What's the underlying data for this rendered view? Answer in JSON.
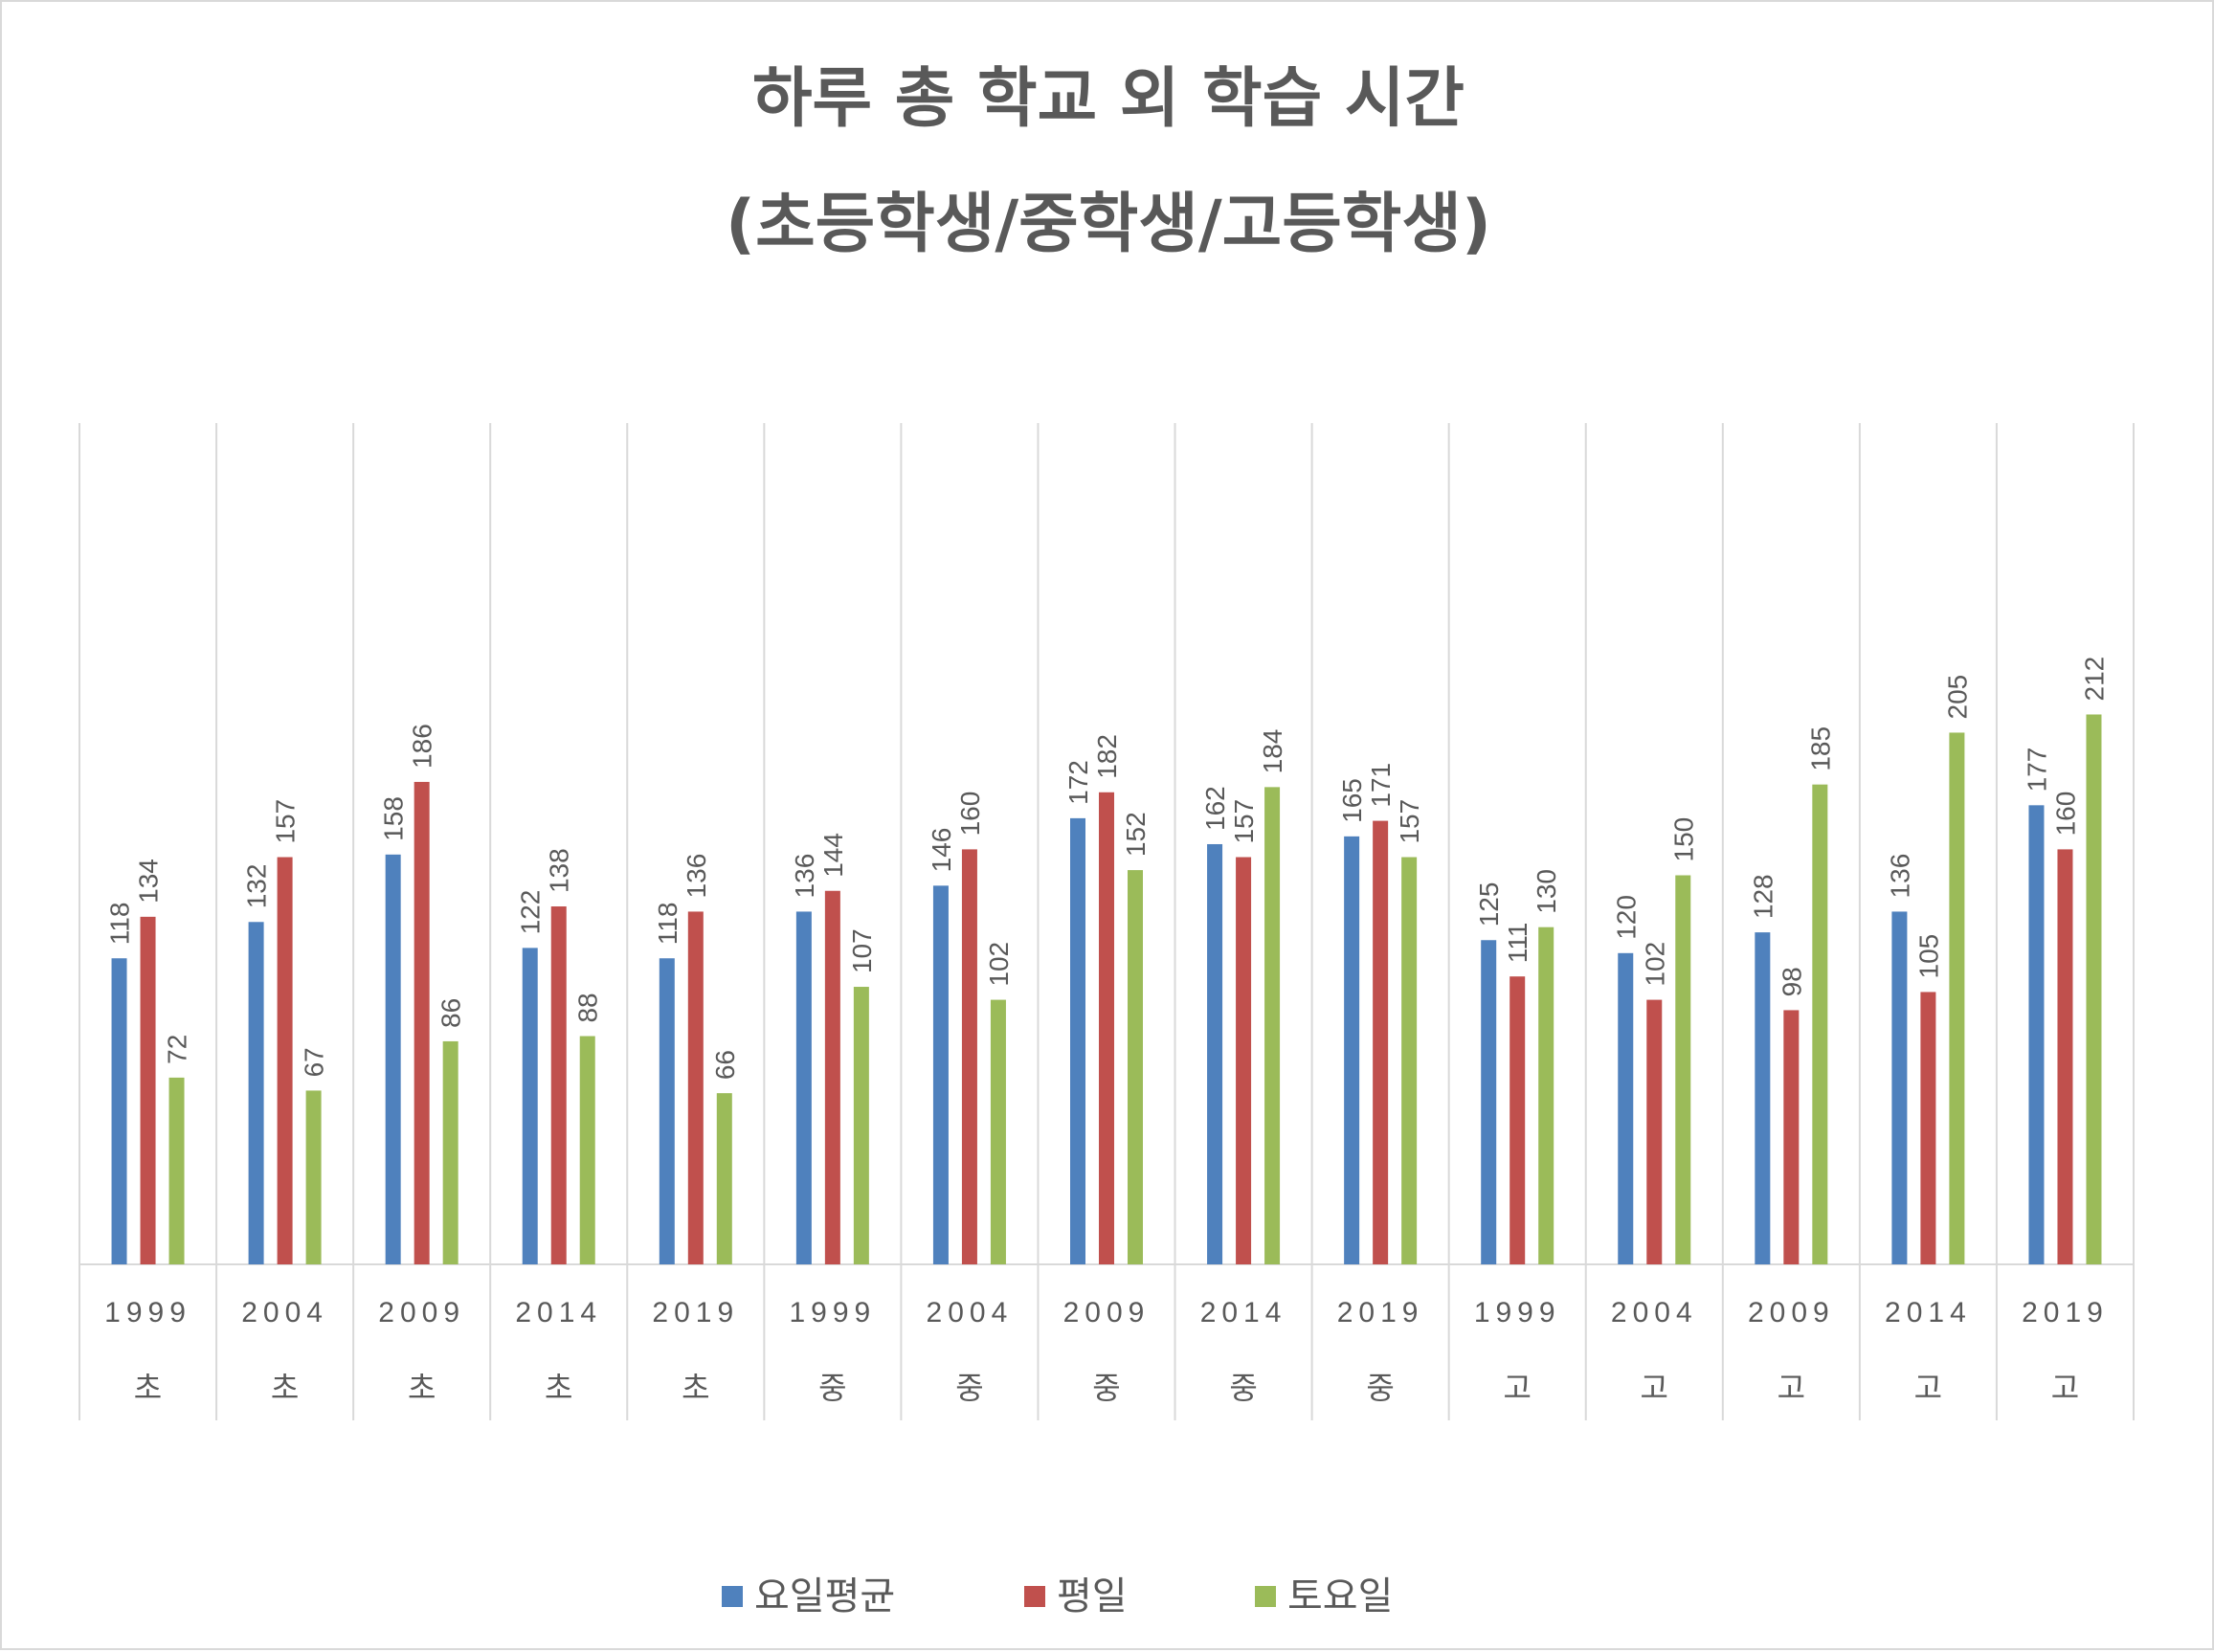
{
  "chart_data": {
    "type": "bar",
    "title_line1": "하루 총 학교 외 학습 시간",
    "title_line2": "(초등학생/중학생/고등학생)",
    "categories": [
      {
        "year": "1999",
        "level": "초"
      },
      {
        "year": "2004",
        "level": "초"
      },
      {
        "year": "2009",
        "level": "초"
      },
      {
        "year": "2014",
        "level": "초"
      },
      {
        "year": "2019",
        "level": "초"
      },
      {
        "year": "1999",
        "level": "중"
      },
      {
        "year": "2004",
        "level": "중"
      },
      {
        "year": "2009",
        "level": "중"
      },
      {
        "year": "2014",
        "level": "중"
      },
      {
        "year": "2019",
        "level": "중"
      },
      {
        "year": "1999",
        "level": "고"
      },
      {
        "year": "2004",
        "level": "고"
      },
      {
        "year": "2009",
        "level": "고"
      },
      {
        "year": "2014",
        "level": "고"
      },
      {
        "year": "2019",
        "level": "고"
      }
    ],
    "series": [
      {
        "name": "요일평균",
        "color": "#4f81bd",
        "values": [
          118,
          132,
          158,
          122,
          118,
          136,
          146,
          172,
          162,
          165,
          125,
          120,
          128,
          136,
          177
        ]
      },
      {
        "name": "평일",
        "color": "#c0504d",
        "values": [
          134,
          157,
          186,
          138,
          136,
          144,
          160,
          182,
          157,
          171,
          111,
          102,
          98,
          105,
          160
        ]
      },
      {
        "name": "토요일",
        "color": "#9bbb59",
        "values": [
          72,
          67,
          86,
          88,
          66,
          107,
          102,
          152,
          184,
          157,
          130,
          150,
          185,
          205,
          212
        ]
      }
    ],
    "ylim": [
      0,
      250
    ],
    "y_axis_visible": false,
    "grid": "vertical category separators",
    "legend_position": "bottom",
    "data_labels": true
  }
}
